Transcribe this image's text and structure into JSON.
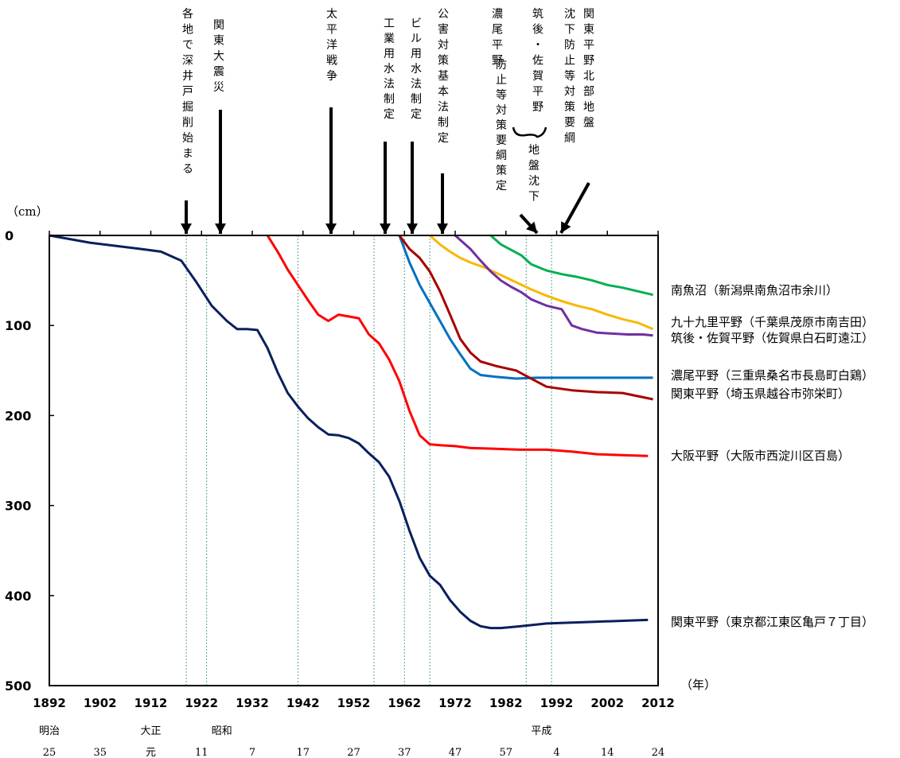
{
  "chart_data": {
    "type": "line",
    "title": "",
    "y_unit_label": "（cm）",
    "x_unit_label": "（年）",
    "xlim": [
      1892,
      2012
    ],
    "ylim": [
      0,
      500
    ],
    "y_inverted": true,
    "grid": false,
    "x_ticks": [
      "1892",
      "1902",
      "1912",
      "1922",
      "1932",
      "1942",
      "1952",
      "1962",
      "1972",
      "1982",
      "1992",
      "2002",
      "2012"
    ],
    "y_ticks": [
      "0",
      "100",
      "200",
      "300",
      "400",
      "500"
    ],
    "era_names": [
      {
        "label": "明治",
        "x": 1892
      },
      {
        "label": "大正",
        "x": 1912
      },
      {
        "label": "昭和",
        "x": 1926
      },
      {
        "label": "平成",
        "x": 1989
      }
    ],
    "era_years": [
      {
        "label": "25",
        "x": 1892
      },
      {
        "label": "35",
        "x": 1902
      },
      {
        "label": "元",
        "x": 1912
      },
      {
        "label": "11",
        "x": 1922
      },
      {
        "label": "7",
        "x": 1932
      },
      {
        "label": "17",
        "x": 1942
      },
      {
        "label": "27",
        "x": 1952
      },
      {
        "label": "37",
        "x": 1962
      },
      {
        "label": "47",
        "x": 1972
      },
      {
        "label": "57",
        "x": 1982
      },
      {
        "label": "4",
        "x": 1992
      },
      {
        "label": "14",
        "x": 2002
      },
      {
        "label": "24",
        "x": 2012
      }
    ],
    "events": [
      {
        "text": "各地で深井戸掘削始まる",
        "x": 1919
      },
      {
        "text": "関東大震災",
        "x": 1923
      },
      {
        "text": "太平洋戦争",
        "x": 1941
      },
      {
        "text": "工業用水法制定",
        "x": 1956
      },
      {
        "text": "ビル用水法制定",
        "x": 1962
      },
      {
        "text": "公害対策基本法制定",
        "x": 1967
      },
      {
        "text": "濃尾平野",
        "x": 1985
      },
      {
        "text": "筑後・佐賀平野",
        "x": 1985
      },
      {
        "text": "防止等対策要綱策定",
        "x": 1985
      },
      {
        "text": "地盤沈下",
        "x": 1985
      },
      {
        "text": "関東平野北部地盤沈下防止等対策要綱",
        "x": 1991
      }
    ],
    "series": [
      {
        "name": "関東平野（東京都江東区亀戸７丁目）",
        "color": "#0a1f5c",
        "x": [
          1892,
          1900,
          1910,
          1914,
          1918,
          1921,
          1924,
          1927,
          1929,
          1931,
          1933,
          1935,
          1937,
          1939,
          1941,
          1943,
          1945,
          1947,
          1949,
          1951,
          1953,
          1955,
          1957,
          1959,
          1961,
          1963,
          1965,
          1967,
          1969,
          1971,
          1973,
          1975,
          1977,
          1979,
          1981,
          1985,
          1990,
          2000,
          2010
        ],
        "y": [
          0,
          8,
          15,
          18,
          28,
          52,
          78,
          95,
          104,
          104,
          105,
          125,
          152,
          175,
          190,
          203,
          213,
          221,
          222,
          225,
          231,
          242,
          252,
          268,
          295,
          328,
          358,
          378,
          388,
          405,
          418,
          428,
          434,
          436,
          436,
          434,
          431,
          429,
          427
        ]
      },
      {
        "name": "大阪平野（大阪市西淀川区百島）",
        "color": "#ff0000",
        "x": [
          1935,
          1937,
          1939,
          1941,
          1943,
          1945,
          1947,
          1949,
          1951,
          1953,
          1955,
          1957,
          1959,
          1961,
          1963,
          1965,
          1967,
          1969,
          1972,
          1975,
          1980,
          1985,
          1990,
          1995,
          2000,
          2005,
          2010
        ],
        "y": [
          0,
          18,
          38,
          55,
          72,
          88,
          95,
          88,
          90,
          92,
          110,
          120,
          138,
          162,
          195,
          222,
          232,
          233,
          234,
          236,
          237,
          238,
          238,
          240,
          243,
          244,
          245
        ]
      },
      {
        "name": "九十九里平野（千葉県茂原市南吉田）",
        "color": "#f8b800",
        "x": [
          1967,
          1969,
          1971,
          1973,
          1975,
          1978,
          1981,
          1984,
          1987,
          1990,
          1993,
          1996,
          1999,
          2002,
          2005,
          2008,
          2011
        ],
        "y": [
          0,
          10,
          18,
          25,
          30,
          36,
          44,
          52,
          60,
          67,
          73,
          78,
          82,
          88,
          93,
          97,
          104
        ]
      },
      {
        "name": "筑後・佐賀平野（佐賀県白石町遠江）",
        "color": "#7030a0",
        "x": [
          1972,
          1975,
          1977,
          1979,
          1981,
          1983,
          1985,
          1987,
          1990,
          1993,
          1995,
          1997,
          2000,
          2003,
          2006,
          2009,
          2011
        ],
        "y": [
          0,
          15,
          28,
          40,
          50,
          57,
          63,
          71,
          78,
          82,
          100,
          104,
          108,
          109,
          110,
          110,
          111
        ]
      },
      {
        "name": "南魚沼（新潟県南魚沼市余川）",
        "color": "#00b050",
        "x": [
          1979,
          1981,
          1983,
          1985,
          1987,
          1990,
          1993,
          1996,
          1999,
          2002,
          2005,
          2008,
          2011
        ],
        "y": [
          0,
          10,
          16,
          22,
          32,
          39,
          43,
          46,
          50,
          55,
          58,
          62,
          66
        ]
      },
      {
        "name": "濃尾平野（三重県桑名市長島町白鶏）",
        "color": "#0070c0",
        "x": [
          1961,
          1963,
          1965,
          1967,
          1969,
          1971,
          1973,
          1975,
          1977,
          1980,
          1984,
          1988,
          1992,
          1996,
          2000,
          2005,
          2011
        ],
        "y": [
          0,
          30,
          55,
          75,
          95,
          115,
          132,
          148,
          155,
          157,
          159,
          158,
          158,
          158,
          158,
          158,
          158
        ]
      },
      {
        "name": "関東平野（埼玉県越谷市弥栄町）",
        "color": "#a80000",
        "x": [
          1961,
          1963,
          1965,
          1967,
          1969,
          1971,
          1973,
          1975,
          1977,
          1980,
          1984,
          1988,
          1990,
          1995,
          2000,
          2005,
          2011
        ],
        "y": [
          0,
          15,
          25,
          40,
          62,
          88,
          115,
          130,
          140,
          145,
          150,
          162,
          168,
          172,
          174,
          175,
          182
        ]
      }
    ]
  }
}
